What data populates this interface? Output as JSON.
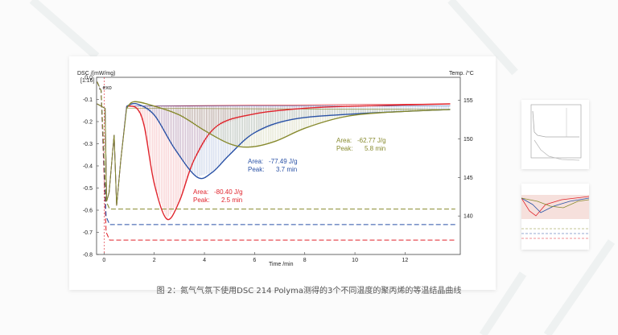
{
  "caption": "图 2：氮气气氛下使用DSC 214 Polyma测得的3个不同温度的聚丙烯的等温结晶曲线",
  "chart_data": {
    "type": "line",
    "title": "",
    "y_label": "DSC /(mW/mg)",
    "y_label_sub": "[1.16]",
    "exo_label": "↓ exo",
    "y2_label": "Temp. /°C",
    "x_label": "Time /min",
    "xlim": [
      -0.3,
      14.2
    ],
    "ylim": [
      -0.8,
      0.0
    ],
    "y2lim": [
      135,
      158
    ],
    "x_ticks": [
      0,
      2,
      4,
      6,
      8,
      10,
      12
    ],
    "y_ticks": [
      0.0,
      -0.1,
      -0.2,
      -0.3,
      -0.4,
      -0.5,
      -0.6,
      -0.7,
      -0.8
    ],
    "y_tick_labels": [
      "0.0",
      "-0.1",
      "-0.2",
      "-0.3",
      "-0.4",
      "-0.5",
      "-0.6",
      "-0.7",
      "-0.8"
    ],
    "y2_ticks": [
      140,
      145,
      150,
      155
    ],
    "series": [
      {
        "name": "red",
        "color": "#e0242c",
        "dsc_points": [
          [
            0.9,
            -0.13
          ],
          [
            1.3,
            -0.14
          ],
          [
            1.6,
            -0.22
          ],
          [
            2.0,
            -0.48
          ],
          [
            2.5,
            -0.64
          ],
          [
            3.0,
            -0.56
          ],
          [
            3.6,
            -0.37
          ],
          [
            4.5,
            -0.22
          ],
          [
            6.0,
            -0.165
          ],
          [
            8.0,
            -0.14
          ],
          [
            10.0,
            -0.13
          ],
          [
            13.8,
            -0.12
          ]
        ],
        "baseline": [
          [
            0.9,
            -0.13
          ],
          [
            13.8,
            -0.12
          ]
        ],
        "temp_level": -0.735,
        "area_label": "Area:",
        "area_value": "-80.40 J/g",
        "peak_label": "Peak:",
        "peak_value": "2.5 min"
      },
      {
        "name": "blue",
        "color": "#2a52a6",
        "dsc_points": [
          [
            0.9,
            -0.13
          ],
          [
            1.3,
            -0.12
          ],
          [
            2.0,
            -0.17
          ],
          [
            2.8,
            -0.32
          ],
          [
            3.7,
            -0.45
          ],
          [
            4.3,
            -0.43
          ],
          [
            5.0,
            -0.35
          ],
          [
            6.0,
            -0.25
          ],
          [
            7.5,
            -0.19
          ],
          [
            10.0,
            -0.165
          ],
          [
            13.8,
            -0.145
          ]
        ],
        "baseline": [
          [
            0.9,
            -0.13
          ],
          [
            13.8,
            -0.13
          ]
        ],
        "temp_level": -0.665,
        "area_label": "Area:",
        "area_value": "-77.49 J/g",
        "peak_label": "Peak:",
        "peak_value": "3.7 min"
      },
      {
        "name": "olive",
        "color": "#878a2e",
        "dsc_points": [
          [
            0.9,
            -0.14
          ],
          [
            1.2,
            -0.11
          ],
          [
            2.0,
            -0.13
          ],
          [
            3.0,
            -0.17
          ],
          [
            4.0,
            -0.24
          ],
          [
            5.0,
            -0.3
          ],
          [
            5.8,
            -0.315
          ],
          [
            6.8,
            -0.29
          ],
          [
            8.0,
            -0.23
          ],
          [
            9.5,
            -0.18
          ],
          [
            11.0,
            -0.16
          ],
          [
            13.8,
            -0.145
          ]
        ],
        "baseline": [
          [
            0.9,
            -0.14
          ],
          [
            13.8,
            -0.145
          ]
        ],
        "temp_level": -0.595,
        "area_label": "Area:",
        "area_value": "-62.77 J/g",
        "peak_label": "Peak:",
        "peak_value": "5.8 min"
      }
    ]
  }
}
